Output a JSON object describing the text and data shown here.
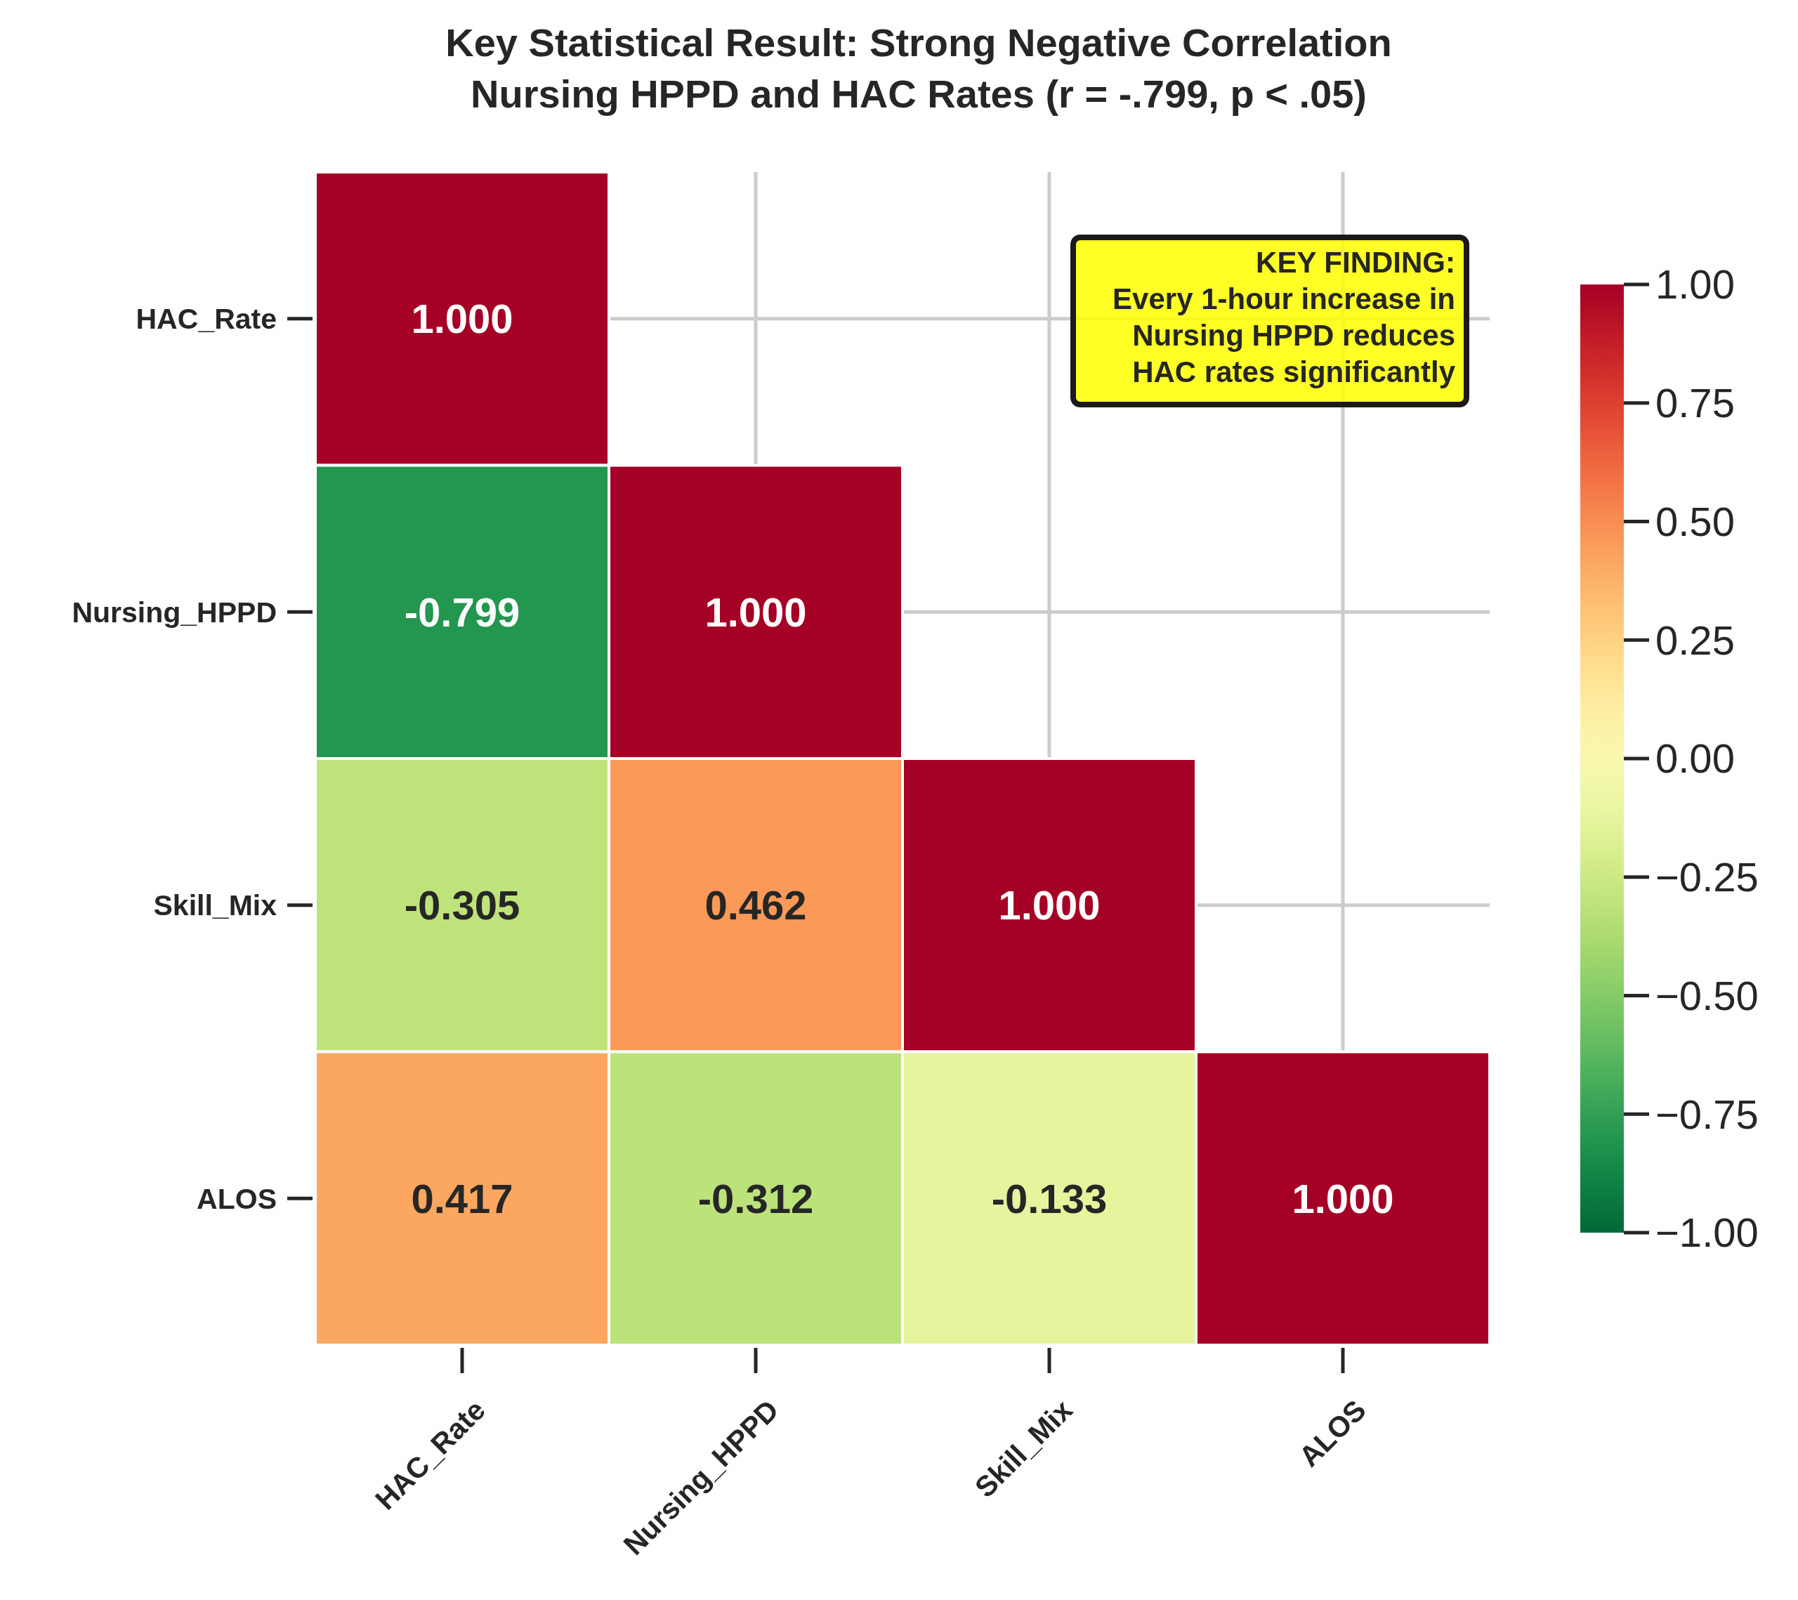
{
  "chart_data": {
    "type": "heatmap",
    "title": "Key Statistical Result: Strong Negative Correlation",
    "subtitle": "Nursing HPPD and HAC Rates (r = -.799, p < .05)",
    "categories": [
      "HAC_Rate",
      "Nursing_HPPD",
      "Skill_Mix",
      "ALOS"
    ],
    "y_categories": [
      "HAC_Rate",
      "Nursing_HPPD",
      "Skill_Mix",
      "ALOS"
    ],
    "cells": [
      [
        1.0,
        null,
        null,
        null
      ],
      [
        -0.799,
        1.0,
        null,
        null
      ],
      [
        -0.305,
        0.462,
        1.0,
        null
      ],
      [
        0.417,
        -0.312,
        -0.133,
        1.0
      ]
    ],
    "cell_labels": [
      [
        "1.000",
        null,
        null,
        null
      ],
      [
        "-0.799",
        "1.000",
        null,
        null
      ],
      [
        "-0.305",
        "0.462",
        "1.000",
        null
      ],
      [
        "0.417",
        "-0.312",
        "-0.133",
        "1.000"
      ]
    ],
    "clim": [
      -1,
      1
    ],
    "cticks": [
      {
        "value": -1,
        "label": "−1.00"
      },
      {
        "value": -0.75,
        "label": "−0.75"
      },
      {
        "value": -0.5,
        "label": "−0.50"
      },
      {
        "value": -0.25,
        "label": "−0.25"
      },
      {
        "value": 0,
        "label": "0.00"
      },
      {
        "value": 0.25,
        "label": "0.25"
      },
      {
        "value": 0.5,
        "label": "0.50"
      },
      {
        "value": 0.75,
        "label": "0.75"
      },
      {
        "value": 1,
        "label": "1.00"
      }
    ],
    "grid": true,
    "annotations": [
      "KEY FINDING:\nEvery 1-hour increase in\nNursing HPPD reduces\nHAC rates significantly"
    ]
  }
}
